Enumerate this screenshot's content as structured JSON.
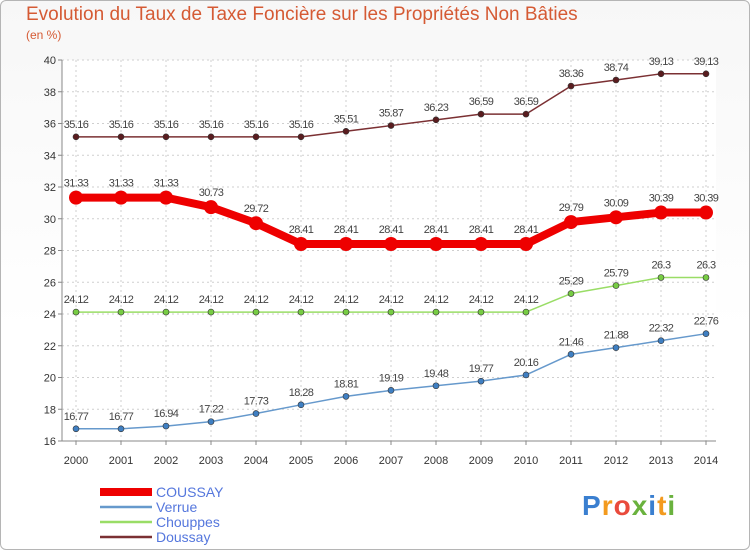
{
  "chart_data": {
    "type": "line",
    "title": "Evolution du Taux de Taxe Foncière sur les Propriétés Non Bâties",
    "ylabel": "(en %)",
    "xlabel": "",
    "categories": [
      "2000",
      "2001",
      "2002",
      "2003",
      "2004",
      "2005",
      "2006",
      "2007",
      "2008",
      "2009",
      "2010",
      "2011",
      "2012",
      "2013",
      "2014"
    ],
    "ylim": [
      16,
      40
    ],
    "yticks": [
      16,
      18,
      20,
      22,
      24,
      26,
      28,
      30,
      32,
      34,
      36,
      38,
      40
    ],
    "grid": true,
    "legend_position": "bottom-left",
    "series": [
      {
        "name": "Doussay",
        "color": "#7b3033",
        "marker": "#5a1c1f",
        "width": 1.5,
        "radius": 3,
        "labels": [
          "35.16",
          "35.16",
          "35.16",
          "35.16",
          "35.16",
          "35.16",
          "35.51",
          "35.87",
          "36.23",
          "36.59",
          "36.59",
          "38.36",
          "38.74",
          "39.13",
          "39.13"
        ],
        "values": [
          35.16,
          35.16,
          35.16,
          35.16,
          35.16,
          35.16,
          35.51,
          35.87,
          36.23,
          36.59,
          36.59,
          38.36,
          38.74,
          39.13,
          39.13
        ]
      },
      {
        "name": "COUSSAY",
        "color": "#ee0000",
        "marker": "#ee0000",
        "width": 8,
        "radius": 7,
        "labels": [
          "31.33",
          "31.33",
          "31.33",
          "30.73",
          "29.72",
          "28.41",
          "28.41",
          "28.41",
          "28.41",
          "28.41",
          "28.41",
          "29.79",
          "30.09",
          "30.39",
          "30.39"
        ],
        "values": [
          31.33,
          31.33,
          31.33,
          30.73,
          29.72,
          28.41,
          28.41,
          28.41,
          28.41,
          28.41,
          28.41,
          29.79,
          30.09,
          30.39,
          30.39
        ]
      },
      {
        "name": "Chouppes",
        "color": "#99dd66",
        "marker": "#77cc44",
        "width": 1.5,
        "radius": 3,
        "labels": [
          "24.12",
          "24.12",
          "24.12",
          "24.12",
          "24.12",
          "24.12",
          "24.12",
          "24.12",
          "24.12",
          "24.12",
          "24.12",
          "25.29",
          "25.79",
          "26.3",
          "26.3"
        ],
        "values": [
          24.12,
          24.12,
          24.12,
          24.12,
          24.12,
          24.12,
          24.12,
          24.12,
          24.12,
          24.12,
          24.12,
          25.29,
          25.79,
          26.3,
          26.3
        ]
      },
      {
        "name": "Verrue",
        "color": "#6699cc",
        "marker": "#3f7fc2",
        "width": 1.5,
        "radius": 3,
        "labels": [
          "16.77",
          "16.77",
          "16.94",
          "17.22",
          "17.73",
          "18.28",
          "18.81",
          "19.19",
          "19.48",
          "19.77",
          "20.16",
          "21.46",
          "21.88",
          "22.32",
          "22.76"
        ],
        "values": [
          16.77,
          16.77,
          16.94,
          17.22,
          17.73,
          18.28,
          18.81,
          19.19,
          19.48,
          19.77,
          20.16,
          21.46,
          21.88,
          22.32,
          22.76
        ]
      }
    ],
    "legend": [
      {
        "name": "COUSSAY",
        "color": "#ee0000",
        "thick": true
      },
      {
        "name": "Verrue",
        "color": "#6699cc",
        "thick": false
      },
      {
        "name": "Chouppes",
        "color": "#99dd66",
        "thick": false
      },
      {
        "name": "Doussay",
        "color": "#7b3033",
        "thick": false
      }
    ]
  },
  "logo": {
    "chars": [
      "P",
      "r",
      "o",
      "x",
      "i",
      "t",
      "i"
    ],
    "colors": [
      "#3a7fd0",
      "#f39a1e",
      "#e94b3c",
      "#6ab23e",
      "#3a7fd0",
      "#f39a1e",
      "#6ab23e"
    ]
  }
}
